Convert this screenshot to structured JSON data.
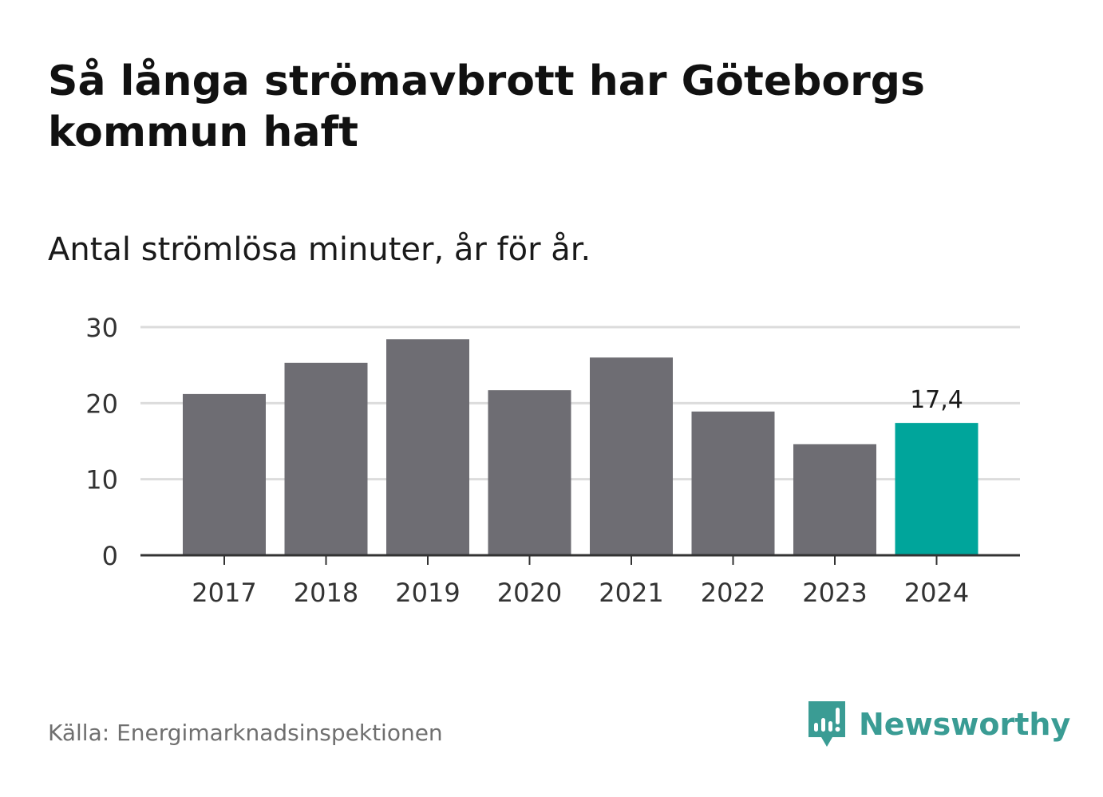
{
  "header": {
    "title": "Så långa strömavbrott har Göteborgs kommun haft",
    "subtitle": "Antal strömlösa minuter, år för år."
  },
  "footer": {
    "source": "Källa: Energimarknadsinspektionen",
    "brand_name": "Newsworthy",
    "brand_icon": "newsworthy-logo-icon"
  },
  "colors": {
    "bar": "#6e6d73",
    "highlight": "#00a59b",
    "grid": "#dcdcdc",
    "axis": "#333333",
    "text": "#333333",
    "brand": "#3a9c94"
  },
  "chart_data": {
    "type": "bar",
    "title": "Så långa strömavbrott har Göteborgs kommun haft",
    "subtitle": "Antal strömlösa minuter, år för år.",
    "categories": [
      "2017",
      "2018",
      "2019",
      "2020",
      "2021",
      "2022",
      "2023",
      "2024"
    ],
    "values": [
      21.2,
      25.3,
      28.4,
      21.7,
      26.0,
      18.9,
      14.6,
      17.4
    ],
    "highlight_index": 7,
    "data_labels": [
      {
        "index": 7,
        "text": "17,4"
      }
    ],
    "xlabel": "",
    "ylabel": "",
    "ylim": [
      0,
      30
    ],
    "yticks": [
      0,
      10,
      20,
      30
    ],
    "grid": true,
    "legend": "none"
  }
}
